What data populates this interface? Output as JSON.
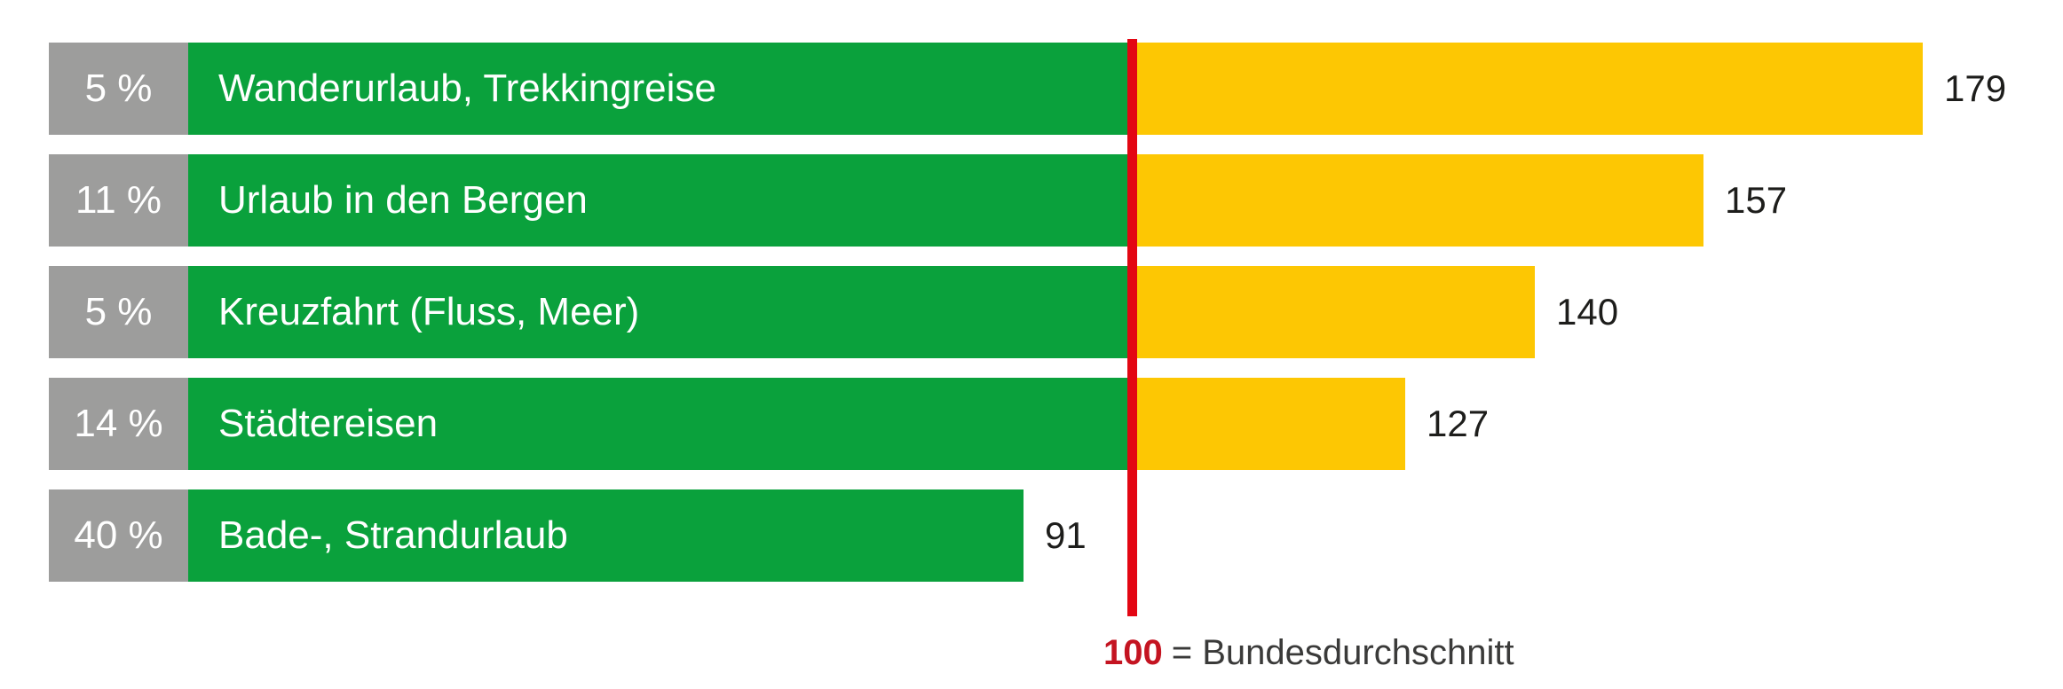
{
  "chart_data": {
    "type": "bar",
    "orientation": "horizontal",
    "title": "",
    "grid": false,
    "legend": "none",
    "xlim_index": [
      0,
      195
    ],
    "reference": {
      "value": 100,
      "label": "Bundesdurchschnitt"
    },
    "rows": [
      {
        "percent_label": "5 %",
        "percent": 5,
        "category": "Wanderurlaub, Trekkingreise",
        "value": 179,
        "value_label": "179"
      },
      {
        "percent_label": "11 %",
        "percent": 11,
        "category": "Urlaub in den Bergen",
        "value": 157,
        "value_label": "157"
      },
      {
        "percent_label": "5 %",
        "percent": 5,
        "category": "Kreuzfahrt (Fluss, Meer)",
        "value": 140,
        "value_label": "140"
      },
      {
        "percent_label": "14 %",
        "percent": 14,
        "category": "Städtereisen",
        "value": 127,
        "value_label": "127"
      },
      {
        "percent_label": "40 %",
        "percent": 40,
        "category": "Bade-, Strandurlaub",
        "value": 91,
        "value_label": "91"
      }
    ],
    "note": {
      "value": "100",
      "label": "= Bundesdurchschnitt"
    },
    "colors": {
      "green": "#0aa13c",
      "yellow": "#fdc703",
      "gray": "#9d9d9c",
      "red_line": "#e30613",
      "note_red": "#c41421",
      "value_text": "#1d1d1b",
      "note_text": "#3a3a39"
    }
  }
}
